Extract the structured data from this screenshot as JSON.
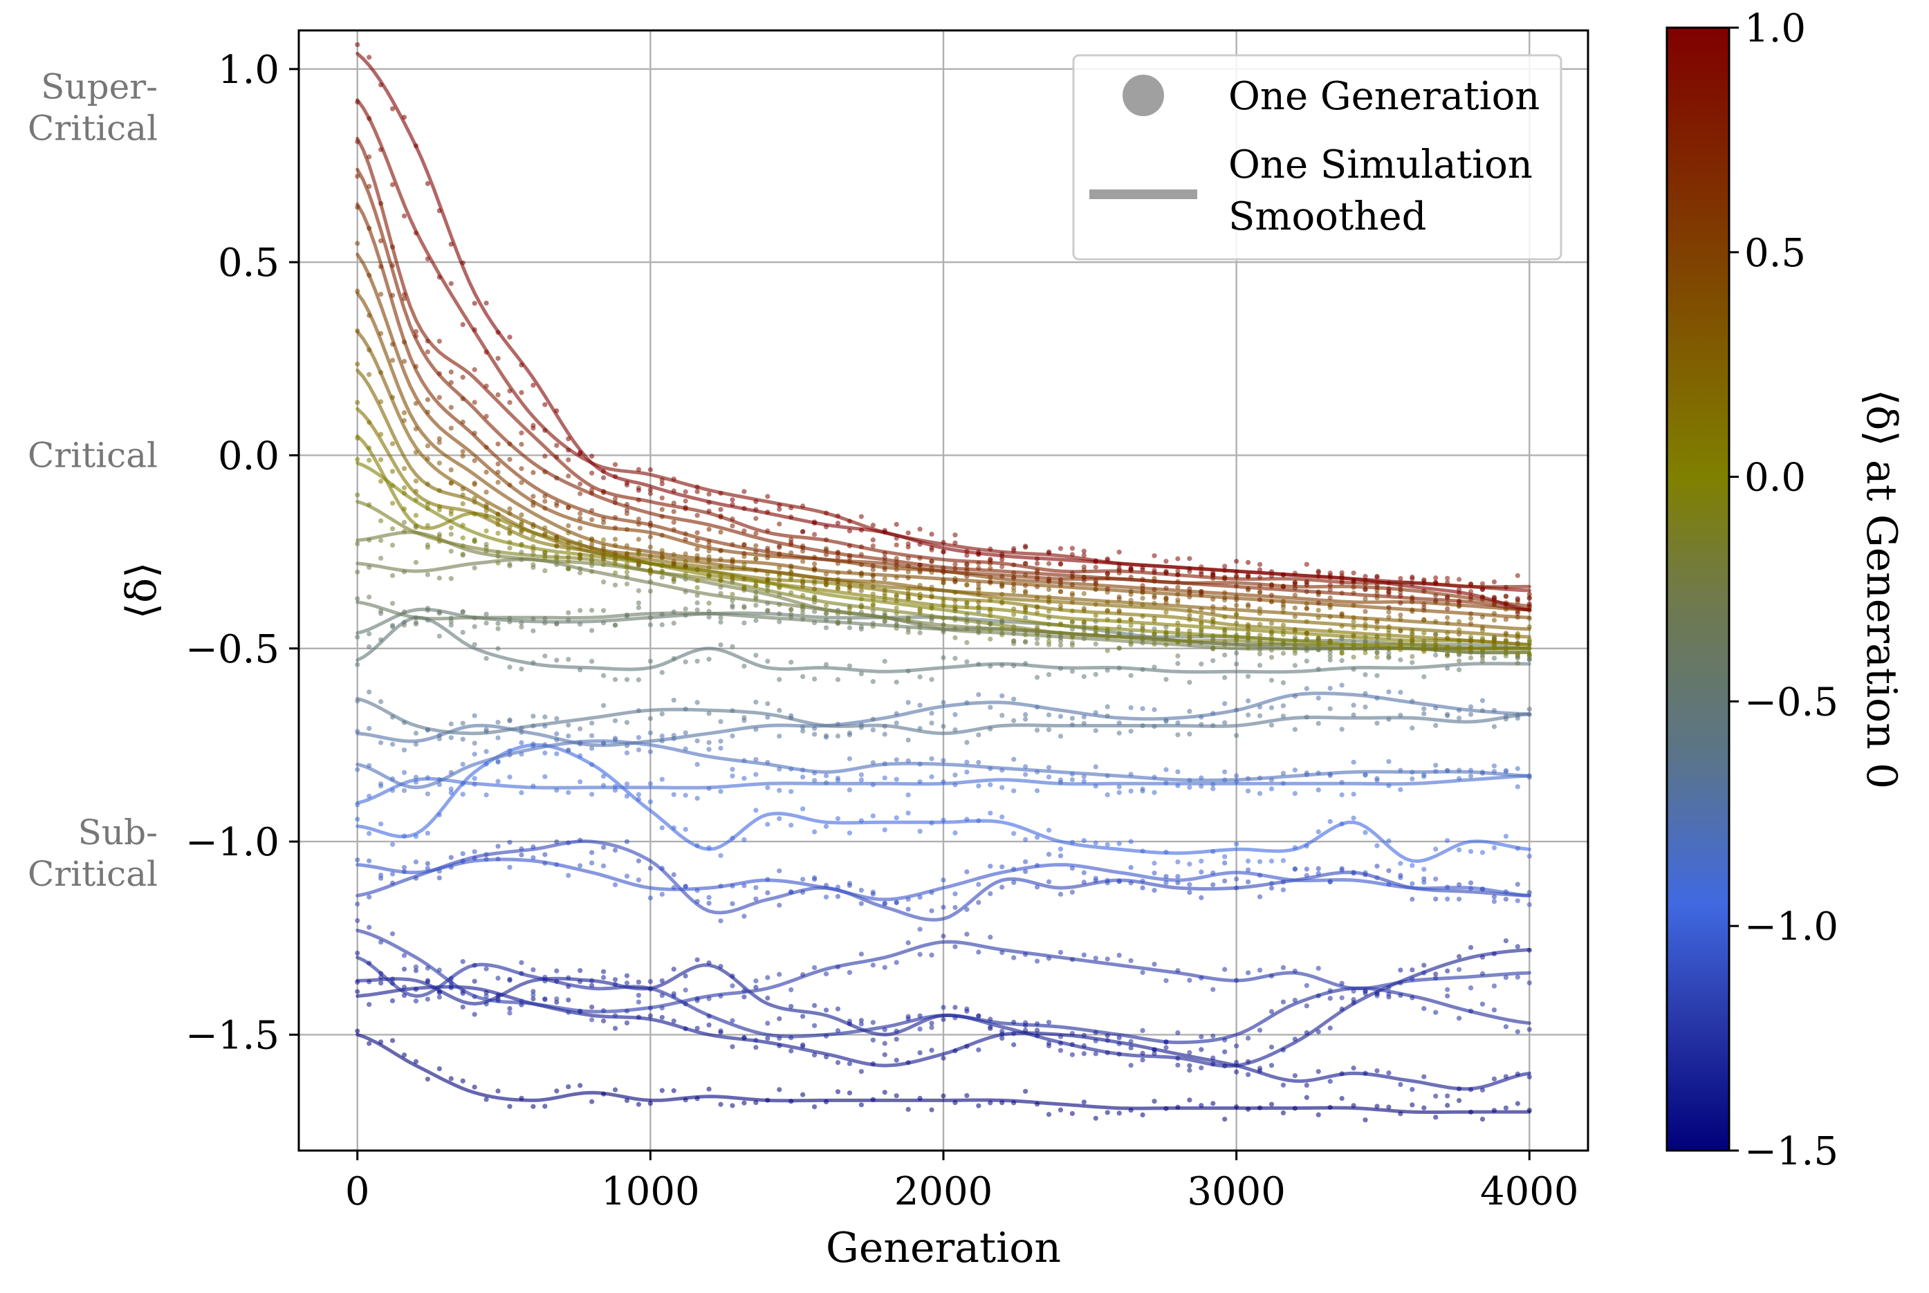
{
  "chart_data": {
    "type": "line",
    "xlabel": "Generation",
    "ylabel": "⟨δ⟩",
    "xlim": [
      -200,
      4200
    ],
    "ylim": [
      -1.8,
      1.1
    ],
    "x_ticks": [
      0,
      1000,
      2000,
      3000,
      4000
    ],
    "x_tick_labels": [
      "0",
      "1000",
      "2000",
      "3000",
      "4000"
    ],
    "y_ticks": [
      1.0,
      0.5,
      0.0,
      -0.5,
      -1.0,
      -1.5
    ],
    "y_tick_labels": [
      "1.0",
      "0.5",
      "0.0",
      "−0.5",
      "−1.0",
      "−1.5"
    ],
    "grid": true,
    "regime_labels": [
      {
        "lines": [
          "Super-",
          "Critical"
        ],
        "y": 0.9
      },
      {
        "lines": [
          "Critical"
        ],
        "y": 0.0
      },
      {
        "lines": [
          "Sub-",
          "Critical"
        ],
        "y": -1.03
      }
    ],
    "legend": {
      "placement": "top-right",
      "entries": [
        {
          "marker": "point",
          "label_lines": [
            "One Generation"
          ]
        },
        {
          "marker": "line",
          "label_lines": [
            "One Simulation",
            "Smoothed"
          ]
        }
      ],
      "color": "#a0a0a0"
    },
    "colorbar": {
      "label": "⟨δ⟩ at Generation 0",
      "range": [
        -1.5,
        1.0
      ],
      "ticks": [
        1.0,
        0.5,
        0.0,
        -0.5,
        -1.0,
        -1.5
      ],
      "tick_labels": [
        "1.0",
        "0.5",
        "0.0",
        "−0.5",
        "−1.0",
        "−1.5"
      ],
      "stops": [
        {
          "v": -1.5,
          "color": "#00007a"
        },
        {
          "v": -1.2,
          "color": "#2a3aaa"
        },
        {
          "v": -0.95,
          "color": "#4169e1"
        },
        {
          "v": -0.6,
          "color": "#5c7585"
        },
        {
          "v": -0.25,
          "color": "#717a48"
        },
        {
          "v": 0.0,
          "color": "#808000"
        },
        {
          "v": 0.5,
          "color": "#804000"
        },
        {
          "v": 1.0,
          "color": "#800000"
        }
      ]
    },
    "x": [
      0,
      200,
      400,
      600,
      800,
      1000,
      1200,
      1400,
      1600,
      1800,
      2000,
      2200,
      2400,
      2600,
      2800,
      3000,
      3200,
      3400,
      3600,
      3800,
      4000
    ],
    "series": [
      {
        "c0": 1.04,
        "values": [
          1.04,
          0.8,
          0.42,
          0.2,
          -0.02,
          -0.08,
          -0.12,
          -0.15,
          -0.18,
          -0.2,
          -0.24,
          -0.26,
          -0.27,
          -0.28,
          -0.29,
          -0.3,
          -0.31,
          -0.32,
          -0.34,
          -0.36,
          -0.4
        ]
      },
      {
        "c0": 0.92,
        "values": [
          0.92,
          0.58,
          0.32,
          0.1,
          -0.02,
          -0.05,
          -0.09,
          -0.12,
          -0.15,
          -0.2,
          -0.23,
          -0.25,
          -0.26,
          -0.28,
          -0.29,
          -0.3,
          -0.31,
          -0.32,
          -0.33,
          -0.34,
          -0.35
        ]
      },
      {
        "c0": 0.82,
        "values": [
          0.82,
          0.35,
          0.2,
          0.05,
          -0.08,
          -0.12,
          -0.15,
          -0.2,
          -0.22,
          -0.25,
          -0.27,
          -0.28,
          -0.3,
          -0.3,
          -0.31,
          -0.32,
          -0.32,
          -0.33,
          -0.33,
          -0.34,
          -0.34
        ]
      },
      {
        "c0": 0.74,
        "values": [
          0.74,
          0.3,
          0.12,
          -0.02,
          -0.1,
          -0.15,
          -0.18,
          -0.22,
          -0.25,
          -0.27,
          -0.29,
          -0.3,
          -0.31,
          -0.32,
          -0.33,
          -0.34,
          -0.35,
          -0.36,
          -0.37,
          -0.38,
          -0.4
        ]
      },
      {
        "c0": 0.65,
        "values": [
          0.65,
          0.22,
          0.05,
          -0.08,
          -0.15,
          -0.18,
          -0.22,
          -0.25,
          -0.27,
          -0.28,
          -0.3,
          -0.31,
          -0.32,
          -0.32,
          -0.33,
          -0.33,
          -0.34,
          -0.34,
          -0.35,
          -0.37,
          -0.39
        ]
      },
      {
        "c0": 0.52,
        "values": [
          0.52,
          0.15,
          0.0,
          -0.12,
          -0.18,
          -0.2,
          -0.24,
          -0.26,
          -0.27,
          -0.29,
          -0.3,
          -0.32,
          -0.33,
          -0.34,
          -0.35,
          -0.36,
          -0.37,
          -0.38,
          -0.38,
          -0.39,
          -0.4
        ]
      },
      {
        "c0": 0.42,
        "values": [
          0.42,
          0.08,
          -0.05,
          -0.15,
          -0.22,
          -0.25,
          -0.27,
          -0.28,
          -0.3,
          -0.31,
          -0.32,
          -0.33,
          -0.34,
          -0.35,
          -0.36,
          -0.37,
          -0.38,
          -0.39,
          -0.4,
          -0.41,
          -0.42
        ]
      },
      {
        "c0": 0.32,
        "values": [
          0.32,
          0.02,
          -0.1,
          -0.18,
          -0.24,
          -0.26,
          -0.28,
          -0.3,
          -0.32,
          -0.33,
          -0.35,
          -0.36,
          -0.37,
          -0.38,
          -0.39,
          -0.4,
          -0.41,
          -0.42,
          -0.43,
          -0.44,
          -0.45
        ]
      },
      {
        "c0": 0.22,
        "values": [
          0.22,
          -0.05,
          -0.12,
          -0.2,
          -0.25,
          -0.27,
          -0.29,
          -0.3,
          -0.32,
          -0.34,
          -0.35,
          -0.37,
          -0.38,
          -0.39,
          -0.4,
          -0.42,
          -0.43,
          -0.44,
          -0.45,
          -0.46,
          -0.47
        ]
      },
      {
        "c0": 0.12,
        "values": [
          0.12,
          -0.1,
          -0.15,
          -0.22,
          -0.25,
          -0.28,
          -0.3,
          -0.32,
          -0.33,
          -0.35,
          -0.37,
          -0.38,
          -0.4,
          -0.41,
          -0.42,
          -0.44,
          -0.45,
          -0.46,
          -0.47,
          -0.48,
          -0.49
        ]
      },
      {
        "c0": 0.05,
        "values": [
          0.05,
          -0.18,
          -0.15,
          -0.2,
          -0.24,
          -0.28,
          -0.31,
          -0.33,
          -0.35,
          -0.37,
          -0.39,
          -0.4,
          -0.42,
          -0.43,
          -0.44,
          -0.45,
          -0.46,
          -0.47,
          -0.48,
          -0.48,
          -0.49
        ]
      },
      {
        "c0": -0.02,
        "values": [
          -0.02,
          -0.12,
          -0.2,
          -0.24,
          -0.26,
          -0.28,
          -0.3,
          -0.33,
          -0.36,
          -0.38,
          -0.4,
          -0.42,
          -0.44,
          -0.45,
          -0.46,
          -0.47,
          -0.48,
          -0.49,
          -0.49,
          -0.5,
          -0.5
        ]
      },
      {
        "c0": -0.12,
        "values": [
          -0.12,
          -0.2,
          -0.24,
          -0.26,
          -0.27,
          -0.3,
          -0.32,
          -0.35,
          -0.38,
          -0.4,
          -0.42,
          -0.44,
          -0.46,
          -0.47,
          -0.48,
          -0.48,
          -0.49,
          -0.49,
          -0.5,
          -0.5,
          -0.5
        ]
      },
      {
        "c0": -0.22,
        "values": [
          -0.22,
          -0.2,
          -0.25,
          -0.27,
          -0.28,
          -0.3,
          -0.33,
          -0.36,
          -0.4,
          -0.42,
          -0.44,
          -0.45,
          -0.46,
          -0.47,
          -0.48,
          -0.49,
          -0.49,
          -0.5,
          -0.5,
          -0.51,
          -0.51
        ]
      },
      {
        "c0": -0.28,
        "values": [
          -0.28,
          -0.3,
          -0.28,
          -0.27,
          -0.3,
          -0.33,
          -0.36,
          -0.38,
          -0.4,
          -0.42,
          -0.45,
          -0.46,
          -0.47,
          -0.48,
          -0.49,
          -0.5,
          -0.5,
          -0.5,
          -0.5,
          -0.51,
          -0.51
        ]
      },
      {
        "c0": -0.38,
        "values": [
          -0.38,
          -0.42,
          -0.42,
          -0.42,
          -0.42,
          -0.41,
          -0.41,
          -0.42,
          -0.43,
          -0.44,
          -0.45,
          -0.45,
          -0.46,
          -0.47,
          -0.47,
          -0.47,
          -0.48,
          -0.48,
          -0.49,
          -0.49,
          -0.5
        ]
      },
      {
        "c0": -0.46,
        "values": [
          -0.46,
          -0.4,
          -0.42,
          -0.43,
          -0.43,
          -0.42,
          -0.41,
          -0.41,
          -0.42,
          -0.42,
          -0.42,
          -0.43,
          -0.44,
          -0.46,
          -0.48,
          -0.49,
          -0.5,
          -0.5,
          -0.5,
          -0.5,
          -0.5
        ]
      },
      {
        "c0": -0.53,
        "values": [
          -0.53,
          -0.42,
          -0.5,
          -0.54,
          -0.55,
          -0.55,
          -0.5,
          -0.55,
          -0.55,
          -0.56,
          -0.55,
          -0.54,
          -0.55,
          -0.55,
          -0.56,
          -0.56,
          -0.56,
          -0.55,
          -0.55,
          -0.54,
          -0.54
        ]
      },
      {
        "c0": -0.63,
        "values": [
          -0.63,
          -0.7,
          -0.72,
          -0.7,
          -0.68,
          -0.66,
          -0.66,
          -0.67,
          -0.7,
          -0.7,
          -0.72,
          -0.7,
          -0.7,
          -0.7,
          -0.7,
          -0.7,
          -0.68,
          -0.68,
          -0.68,
          -0.69,
          -0.67
        ]
      },
      {
        "c0": -0.72,
        "values": [
          -0.72,
          -0.74,
          -0.7,
          -0.72,
          -0.75,
          -0.74,
          -0.72,
          -0.7,
          -0.7,
          -0.68,
          -0.65,
          -0.64,
          -0.66,
          -0.68,
          -0.68,
          -0.66,
          -0.62,
          -0.62,
          -0.64,
          -0.66,
          -0.67
        ]
      },
      {
        "c0": -0.8,
        "values": [
          -0.8,
          -0.86,
          -0.8,
          -0.76,
          -0.74,
          -0.75,
          -0.78,
          -0.8,
          -0.82,
          -0.8,
          -0.8,
          -0.81,
          -0.82,
          -0.83,
          -0.84,
          -0.84,
          -0.83,
          -0.82,
          -0.82,
          -0.82,
          -0.83
        ]
      },
      {
        "c0": -0.9,
        "values": [
          -0.9,
          -0.84,
          -0.85,
          -0.86,
          -0.86,
          -0.86,
          -0.86,
          -0.85,
          -0.85,
          -0.85,
          -0.85,
          -0.84,
          -0.85,
          -0.85,
          -0.85,
          -0.85,
          -0.85,
          -0.85,
          -0.85,
          -0.84,
          -0.83
        ]
      },
      {
        "c0": -0.96,
        "values": [
          -0.96,
          -0.98,
          -0.82,
          -0.75,
          -0.8,
          -0.92,
          -1.02,
          -0.93,
          -0.95,
          -0.95,
          -0.95,
          -0.95,
          -1.0,
          -1.02,
          -1.03,
          -1.02,
          -1.02,
          -0.95,
          -1.05,
          -1.0,
          -1.02
        ]
      },
      {
        "c0": -1.06,
        "values": [
          -1.06,
          -1.08,
          -1.05,
          -1.05,
          -1.08,
          -1.12,
          -1.12,
          -1.1,
          -1.12,
          -1.15,
          -1.12,
          -1.08,
          -1.06,
          -1.08,
          -1.1,
          -1.08,
          -1.1,
          -1.1,
          -1.12,
          -1.12,
          -1.14
        ]
      },
      {
        "c0": -1.14,
        "values": [
          -1.14,
          -1.09,
          -1.04,
          -1.02,
          -1.0,
          -1.05,
          -1.18,
          -1.15,
          -1.12,
          -1.17,
          -1.2,
          -1.1,
          -1.12,
          -1.1,
          -1.12,
          -1.12,
          -1.1,
          -1.08,
          -1.12,
          -1.13,
          -1.14
        ]
      },
      {
        "c0": -1.23,
        "values": [
          -1.23,
          -1.3,
          -1.4,
          -1.42,
          -1.44,
          -1.43,
          -1.4,
          -1.38,
          -1.33,
          -1.3,
          -1.26,
          -1.28,
          -1.3,
          -1.32,
          -1.34,
          -1.36,
          -1.34,
          -1.38,
          -1.36,
          -1.35,
          -1.34
        ]
      },
      {
        "c0": -1.3,
        "values": [
          -1.3,
          -1.4,
          -1.32,
          -1.35,
          -1.38,
          -1.38,
          -1.45,
          -1.5,
          -1.5,
          -1.48,
          -1.45,
          -1.47,
          -1.48,
          -1.5,
          -1.52,
          -1.5,
          -1.42,
          -1.38,
          -1.4,
          -1.44,
          -1.47
        ]
      },
      {
        "c0": -1.36,
        "values": [
          -1.36,
          -1.36,
          -1.42,
          -1.36,
          -1.36,
          -1.38,
          -1.32,
          -1.42,
          -1.45,
          -1.5,
          -1.45,
          -1.48,
          -1.52,
          -1.55,
          -1.56,
          -1.58,
          -1.52,
          -1.42,
          -1.35,
          -1.3,
          -1.28
        ]
      },
      {
        "c0": -1.4,
        "values": [
          -1.4,
          -1.38,
          -1.38,
          -1.42,
          -1.45,
          -1.46,
          -1.5,
          -1.52,
          -1.55,
          -1.58,
          -1.55,
          -1.5,
          -1.5,
          -1.52,
          -1.55,
          -1.58,
          -1.62,
          -1.6,
          -1.62,
          -1.64,
          -1.6
        ]
      },
      {
        "c0": -1.5,
        "values": [
          -1.5,
          -1.58,
          -1.65,
          -1.67,
          -1.65,
          -1.67,
          -1.66,
          -1.67,
          -1.67,
          -1.67,
          -1.67,
          -1.67,
          -1.68,
          -1.69,
          -1.69,
          -1.69,
          -1.69,
          -1.69,
          -1.7,
          -1.7,
          -1.7
        ]
      }
    ]
  }
}
